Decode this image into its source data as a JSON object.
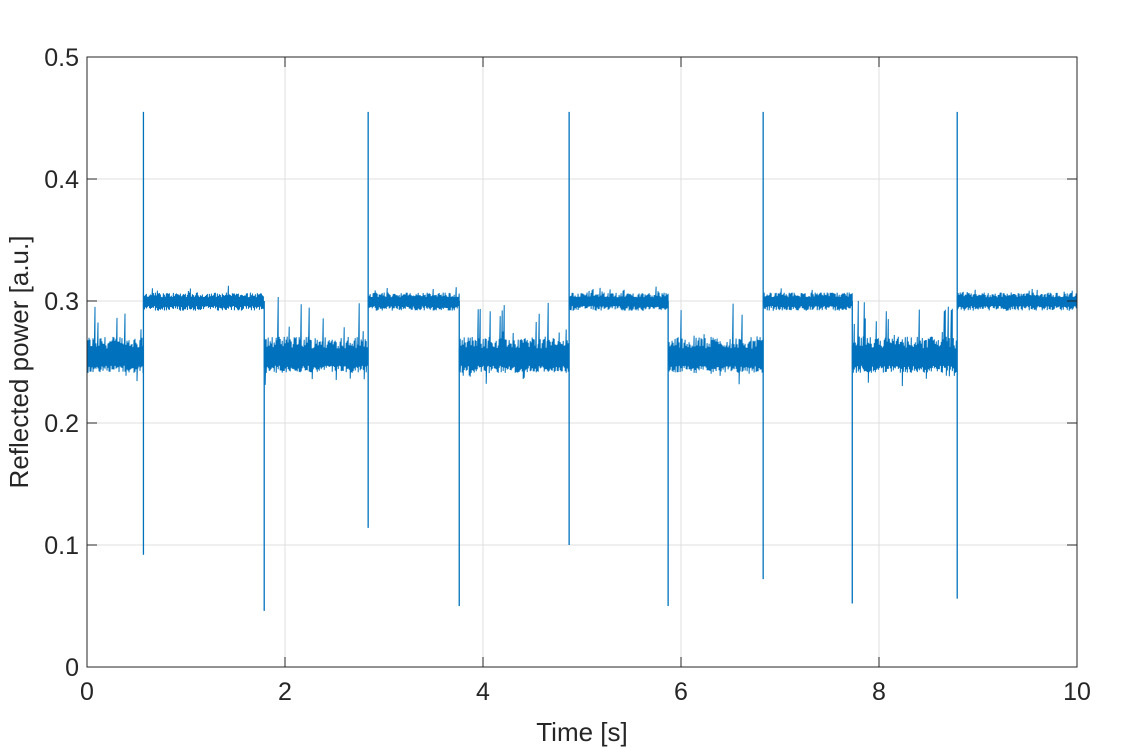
{
  "chart_data": {
    "type": "line",
    "title": "",
    "xlabel": "Time [s]",
    "ylabel": "Reflected power [a.u.]",
    "xlim": [
      0,
      10
    ],
    "ylim": [
      0,
      0.5
    ],
    "xticks": [
      0,
      2,
      4,
      6,
      8,
      10
    ],
    "yticks": [
      0,
      0.1,
      0.2,
      0.3,
      0.4,
      0.5
    ],
    "xtick_labels": [
      "0",
      "2",
      "4",
      "6",
      "8",
      "10"
    ],
    "ytick_labels": [
      "0",
      "0.1",
      "0.2",
      "0.3",
      "0.4",
      "0.5"
    ],
    "grid": true,
    "series_color": "#0072BD",
    "levels": {
      "low": 0.255,
      "high": 0.3
    },
    "segments": [
      {
        "start": 0.0,
        "end": 0.57,
        "level": "low"
      },
      {
        "start": 0.57,
        "end": 1.79,
        "level": "high"
      },
      {
        "start": 1.79,
        "end": 2.84,
        "level": "low"
      },
      {
        "start": 2.84,
        "end": 3.76,
        "level": "high"
      },
      {
        "start": 3.76,
        "end": 4.87,
        "level": "low"
      },
      {
        "start": 4.87,
        "end": 5.87,
        "level": "high"
      },
      {
        "start": 5.87,
        "end": 6.83,
        "level": "low"
      },
      {
        "start": 6.83,
        "end": 7.73,
        "level": "high"
      },
      {
        "start": 7.73,
        "end": 8.79,
        "level": "low"
      },
      {
        "start": 8.79,
        "end": 10.0,
        "level": "high"
      }
    ],
    "spikes": [
      {
        "x": 0.57,
        "min": 0.092,
        "max": 0.455
      },
      {
        "x": 1.79,
        "min": 0.046,
        "max": 0.3
      },
      {
        "x": 2.84,
        "min": 0.114,
        "max": 0.455
      },
      {
        "x": 3.76,
        "min": 0.05,
        "max": 0.3
      },
      {
        "x": 4.87,
        "min": 0.1,
        "max": 0.455
      },
      {
        "x": 5.87,
        "min": 0.05,
        "max": 0.3
      },
      {
        "x": 6.83,
        "min": 0.072,
        "max": 0.455
      },
      {
        "x": 7.73,
        "min": 0.052,
        "max": 0.3
      },
      {
        "x": 8.79,
        "min": 0.056,
        "max": 0.455
      }
    ]
  }
}
